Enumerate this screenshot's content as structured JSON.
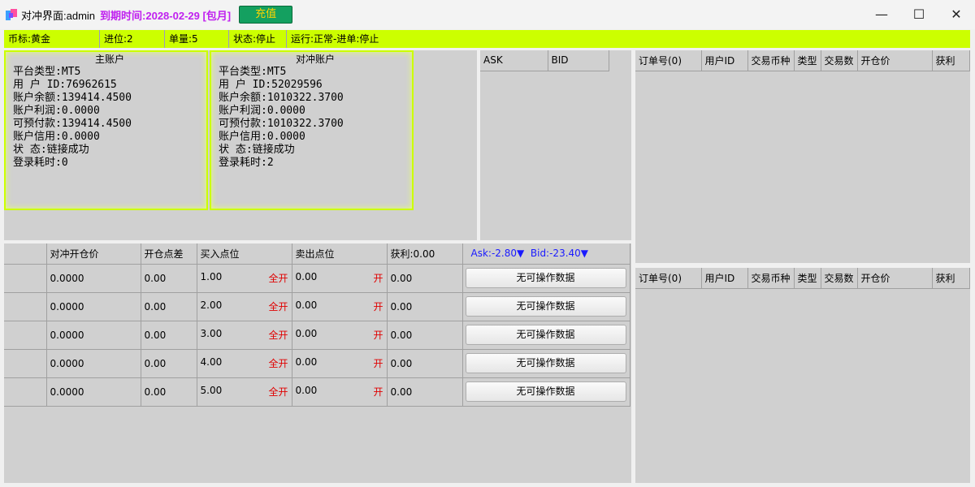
{
  "titlebar": {
    "title": "对冲界面:admin",
    "expiry": "到期时间:2028-02-29 [包月]",
    "recharge": "充值",
    "minimize": "—",
    "maximize": "☐",
    "close": "✕"
  },
  "status": [
    "币标:黄金",
    "进位:2",
    "单量:5",
    "状态:停止",
    "运行:正常-进单:停止"
  ],
  "main_account": {
    "heading": "主账户",
    "lines": [
      "平台类型:MT5",
      "用 户 ID:76962615",
      "账户余额:139414.4500",
      "账户利润:0.0000",
      "可预付款:139414.4500",
      "账户信用:0.0000",
      "状 态:链接成功",
      "登录耗时:0"
    ]
  },
  "hedge_account": {
    "heading": "对冲账户",
    "lines": [
      "平台类型:MT5",
      "用 户 ID:52029596",
      "账户余额:1010322.3700",
      "账户利润:0.0000",
      "可预付款:1010322.3700",
      "账户信用:0.0000",
      "状 态:链接成功",
      "登录耗时:2"
    ]
  },
  "quotes": {
    "headers": [
      "ASK",
      "BID"
    ]
  },
  "orders_top": {
    "headers": [
      "订单号(0)",
      "用户ID",
      "交易币种",
      "类型",
      "交易数",
      "开仓价",
      "获利"
    ]
  },
  "orders_bottom": {
    "headers": [
      "订单号(0)",
      "用户ID",
      "交易币种",
      "类型",
      "交易数",
      "开仓价",
      "获利"
    ]
  },
  "hedge_table": {
    "headers": [
      "",
      "对冲开仓价",
      "开仓点差",
      "买入点位",
      "卖出点位",
      "获利:0.00"
    ],
    "ask": "Ask:-2.80▼",
    "bid": "Bid:-23.40▼",
    "rows": [
      {
        "price": "0.0000",
        "spread": "0.00",
        "buy": "1.00",
        "buy_action": "全开",
        "sell": "0.00",
        "sell_action": "开",
        "profit": "0.00",
        "button": "无可操作数据"
      },
      {
        "price": "0.0000",
        "spread": "0.00",
        "buy": "2.00",
        "buy_action": "全开",
        "sell": "0.00",
        "sell_action": "开",
        "profit": "0.00",
        "button": "无可操作数据"
      },
      {
        "price": "0.0000",
        "spread": "0.00",
        "buy": "3.00",
        "buy_action": "全开",
        "sell": "0.00",
        "sell_action": "开",
        "profit": "0.00",
        "button": "无可操作数据"
      },
      {
        "price": "0.0000",
        "spread": "0.00",
        "buy": "4.00",
        "buy_action": "全开",
        "sell": "0.00",
        "sell_action": "开",
        "profit": "0.00",
        "button": "无可操作数据"
      },
      {
        "price": "0.0000",
        "spread": "0.00",
        "buy": "5.00",
        "buy_action": "全开",
        "sell": "0.00",
        "sell_action": "开",
        "profit": "0.00",
        "button": "无可操作数据"
      }
    ]
  },
  "colors": {
    "status_bar": "#ccff00",
    "expiry": "#c020f0",
    "recharge_bg": "#14a060",
    "recharge_text": "#ffd400",
    "action_red": "#e00000",
    "quote_blue": "#1a1aff"
  }
}
